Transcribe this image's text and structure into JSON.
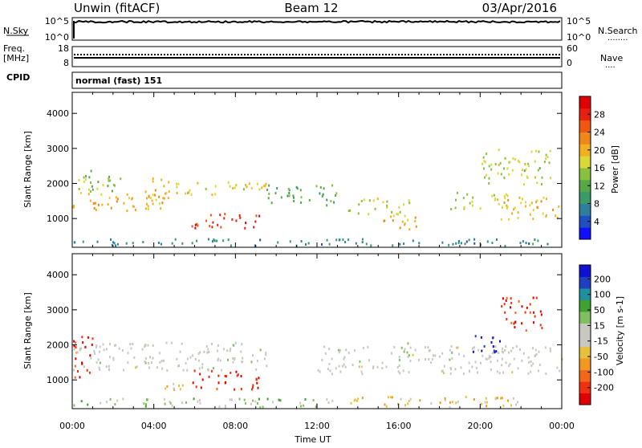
{
  "header": {
    "left_title": "Unwin (fitACF)",
    "center_title": "Beam 12",
    "right_title": "03/Apr/2016"
  },
  "strip_nsky": {
    "left_label": "N.Sky",
    "left_ticks": [
      "10^5",
      "10^0"
    ],
    "right_ticks": [
      "10^5",
      "10^0"
    ],
    "right_label": "N.Search",
    "right_line_symbol": "........"
  },
  "strip_freq": {
    "left_label": "Freq.",
    "left_units": "[MHz]",
    "left_ticks": [
      "18",
      "8"
    ],
    "right_ticks": [
      "60",
      "0"
    ],
    "right_label": "Nave",
    "right_line_symbol": "...."
  },
  "strip_cpid": {
    "label": "CPID",
    "text": "normal (fast) 151"
  },
  "x_axis": {
    "tick_labels": [
      "00:00",
      "04:00",
      "08:00",
      "12:00",
      "16:00",
      "20:00",
      "00:00"
    ],
    "label": "Time UT"
  },
  "chart_data": [
    {
      "type": "heatmap",
      "parameter": "power",
      "ylabel": "Slant Range [km]",
      "yticks": [
        1000,
        2000,
        3000,
        4000
      ],
      "ylim": [
        180,
        4600
      ],
      "xlim": [
        0,
        24
      ],
      "colorbar": {
        "label": "Power [dB]",
        "ticks": [
          4,
          8,
          12,
          16,
          20,
          24,
          28
        ],
        "range": [
          0,
          32
        ],
        "colors": [
          "#1010ff",
          "#2050c0",
          "#2e7f9c",
          "#3a9a6a",
          "#58a848",
          "#88c040",
          "#d8d838",
          "#f0b020",
          "#f08818",
          "#f05810",
          "#e82010",
          "#e00000"
        ]
      },
      "regions": [
        {
          "t": [
            0,
            4.5
          ],
          "r": [
            1200,
            1800
          ],
          "dB": 20
        },
        {
          "t": [
            0,
            2.5
          ],
          "r": [
            1800,
            2400
          ],
          "dB": 14
        },
        {
          "t": [
            3.6,
            4.7
          ],
          "r": [
            1600,
            2200
          ],
          "dB": 20
        },
        {
          "t": [
            4.5,
            9.5
          ],
          "r": [
            1700,
            2100
          ],
          "dB": 18
        },
        {
          "t": [
            5.8,
            9.2
          ],
          "r": [
            750,
            1200
          ],
          "dB": 28
        },
        {
          "t": [
            9.5,
            13.0
          ],
          "r": [
            1400,
            2000
          ],
          "dB": 12
        },
        {
          "t": [
            13.5,
            16.5
          ],
          "r": [
            1100,
            1600
          ],
          "dB": 16
        },
        {
          "t": [
            15.0,
            17.0
          ],
          "r": [
            700,
            1100
          ],
          "dB": 20
        },
        {
          "t": [
            18.5,
            21.5
          ],
          "r": [
            1300,
            1800
          ],
          "dB": 16
        },
        {
          "t": [
            21.0,
            24.0
          ],
          "r": [
            1000,
            1700
          ],
          "dB": 20
        },
        {
          "t": [
            20.0,
            23.5
          ],
          "r": [
            2000,
            3000
          ],
          "dB": 16
        },
        {
          "t": [
            0,
            24
          ],
          "r": [
            250,
            450
          ],
          "dB": 8
        }
      ]
    },
    {
      "type": "heatmap",
      "parameter": "velocity",
      "ylabel": "Slant Range [km]",
      "yticks": [
        1000,
        2000,
        3000,
        4000
      ],
      "ylim": [
        180,
        4600
      ],
      "xlim": [
        0,
        24
      ],
      "colorbar": {
        "label": "Velocity [m s-1]",
        "ticks": [
          200,
          100,
          50,
          15,
          -15,
          -50,
          -100,
          -200
        ],
        "range": [
          -250,
          250
        ],
        "colors": [
          "#e00000",
          "#f03010",
          "#f06818",
          "#f09820",
          "#e8c040",
          "#c8c8c0",
          "#c8c8c0",
          "#80c060",
          "#40a030",
          "#2090a0",
          "#2040c0",
          "#1010d0"
        ]
      },
      "regions": [
        {
          "t": [
            0,
            9.5
          ],
          "r": [
            1300,
            2100
          ],
          "v": 0
        },
        {
          "t": [
            0,
            1.0
          ],
          "r": [
            1100,
            2300
          ],
          "v": -200
        },
        {
          "t": [
            5.8,
            9.2
          ],
          "r": [
            750,
            1300
          ],
          "v": -200
        },
        {
          "t": [
            4.5,
            6.0
          ],
          "r": [
            700,
            1000
          ],
          "v": -60
        },
        {
          "t": [
            12.0,
            24.0
          ],
          "r": [
            1200,
            2000
          ],
          "v": 0
        },
        {
          "t": [
            19.5,
            21.0
          ],
          "r": [
            1800,
            2300
          ],
          "v": 200
        },
        {
          "t": [
            21.0,
            23.0
          ],
          "r": [
            2400,
            3400
          ],
          "v": -200
        },
        {
          "t": [
            16.0,
            16.5
          ],
          "r": [
            1800,
            2100
          ],
          "v": 60
        },
        {
          "t": [
            13.0,
            22.0
          ],
          "r": [
            250,
            550
          ],
          "v": -60
        },
        {
          "t": [
            0,
            13.0
          ],
          "r": [
            250,
            500
          ],
          "v": 50
        }
      ]
    }
  ]
}
